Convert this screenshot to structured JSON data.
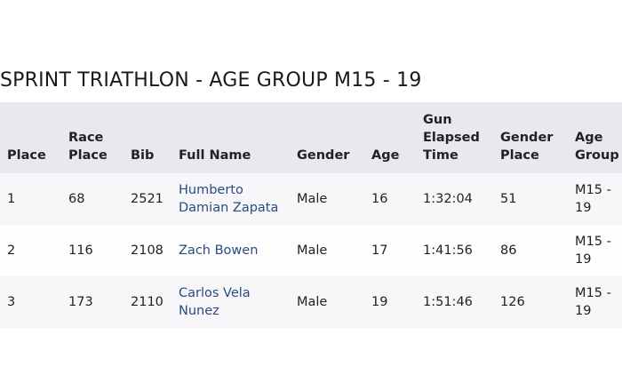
{
  "title": "SPRINT TRIATHLON - AGE GROUP M15 - 19",
  "table": {
    "headers": [
      "Place",
      "Race Place",
      "Bib",
      "Full Name",
      "Gender",
      "Age",
      "Gun Elapsed Time",
      "Gender Place",
      "Age Group"
    ],
    "rows": [
      [
        "1",
        "68",
        "2521",
        "Humberto Damian Zapata",
        "Male",
        "16",
        "1:32:04",
        "51",
        "M15 - 19"
      ],
      [
        "2",
        "116",
        "2108",
        "Zach Bowen",
        "Male",
        "17",
        "1:41:56",
        "86",
        "M15 - 19"
      ],
      [
        "3",
        "173",
        "2110",
        "Carlos Vela Nunez",
        "Male",
        "19",
        "1:51:46",
        "126",
        "M15 - 19"
      ]
    ]
  }
}
